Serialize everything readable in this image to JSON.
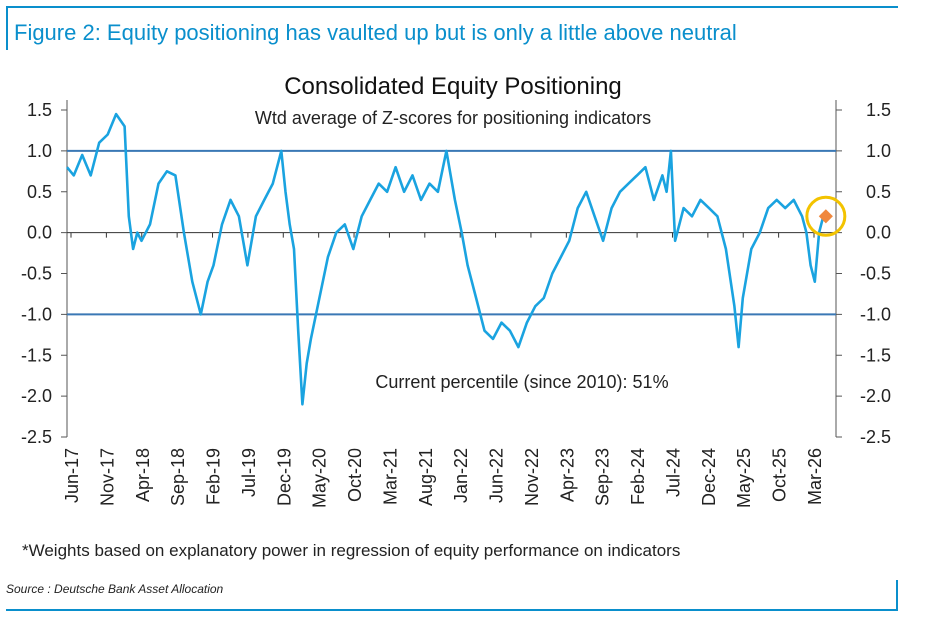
{
  "figure_title": "Figure 2: Equity positioning has vaulted up but is only a little above neutral",
  "footnote": "*Weights based on explanatory power in regression of equity performance on indicators",
  "source": "Source : Deutsche Bank Asset Allocation",
  "colors": {
    "frame": "#0a8fcc",
    "series": "#1aa3e0",
    "reference_lines": "#3a78b5",
    "highlight_circle": "#f3c300",
    "current_marker": "#f0883e"
  },
  "chart_data": {
    "type": "line",
    "title": "Consolidated Equity Positioning",
    "subtitle": "Wtd average of Z-scores for positioning indicators",
    "annotation": "Current percentile (since 2010): 51%",
    "xlabel": "",
    "ylabel": "",
    "ylim": [
      -2.5,
      1.5
    ],
    "xlim": [
      2017.42,
      2026.5
    ],
    "yticks": [
      "1.5",
      "1.0",
      "0.5",
      "0.0",
      "-0.5",
      "-1.0",
      "-1.5",
      "-2.0",
      "-2.5"
    ],
    "xtick_labels": [
      "Jun-17",
      "Nov-17",
      "Apr-18",
      "Sep-18",
      "Feb-19",
      "Jul-19",
      "Dec-19",
      "May-20",
      "Oct-20",
      "Mar-21",
      "Aug-21",
      "Jan-22",
      "Jun-22",
      "Nov-22",
      "Apr-23",
      "Sep-23",
      "Feb-24",
      "Jul-24",
      "Dec-24",
      "May-25",
      "Oct-25",
      "Mar-26"
    ],
    "reference_lines": [
      1.0,
      -1.0
    ],
    "current_point": {
      "x": 2026.38,
      "y": 0.2
    },
    "series": [
      {
        "name": "Consolidated Equity Positioning",
        "x": [
          2017.42,
          2017.5,
          2017.6,
          2017.7,
          2017.8,
          2017.9,
          2018.0,
          2018.1,
          2018.15,
          2018.2,
          2018.25,
          2018.3,
          2018.4,
          2018.5,
          2018.6,
          2018.7,
          2018.8,
          2018.9,
          2019.0,
          2019.08,
          2019.15,
          2019.25,
          2019.35,
          2019.45,
          2019.55,
          2019.65,
          2019.75,
          2019.85,
          2019.95,
          2020.0,
          2020.05,
          2020.1,
          2020.15,
          2020.2,
          2020.25,
          2020.3,
          2020.4,
          2020.5,
          2020.6,
          2020.7,
          2020.8,
          2020.9,
          2021.0,
          2021.1,
          2021.2,
          2021.3,
          2021.4,
          2021.5,
          2021.6,
          2021.7,
          2021.8,
          2021.9,
          2022.0,
          2022.08,
          2022.15,
          2022.25,
          2022.35,
          2022.45,
          2022.55,
          2022.65,
          2022.75,
          2022.85,
          2022.95,
          2023.05,
          2023.15,
          2023.25,
          2023.35,
          2023.45,
          2023.55,
          2023.65,
          2023.75,
          2023.85,
          2023.95,
          2024.05,
          2024.15,
          2024.25,
          2024.35,
          2024.45,
          2024.5,
          2024.55,
          2024.6,
          2024.7,
          2024.8,
          2024.9,
          2025.0,
          2025.1,
          2025.2,
          2025.3,
          2025.35,
          2025.4,
          2025.5,
          2025.6,
          2025.7,
          2025.8,
          2025.9,
          2026.0,
          2026.05,
          2026.1,
          2026.15,
          2026.2,
          2026.25,
          2026.3,
          2026.35
        ],
        "y": [
          0.8,
          0.7,
          0.95,
          0.7,
          1.1,
          1.2,
          1.45,
          1.3,
          0.2,
          -0.2,
          0.0,
          -0.1,
          0.1,
          0.6,
          0.75,
          0.7,
          0.0,
          -0.6,
          -1.0,
          -0.6,
          -0.4,
          0.1,
          0.4,
          0.2,
          -0.4,
          0.2,
          0.4,
          0.6,
          1.0,
          0.5,
          0.1,
          -0.2,
          -1.2,
          -2.1,
          -1.6,
          -1.3,
          -0.8,
          -0.3,
          0.0,
          0.1,
          -0.2,
          0.2,
          0.4,
          0.6,
          0.5,
          0.8,
          0.5,
          0.7,
          0.4,
          0.6,
          0.5,
          1.0,
          0.4,
          0.0,
          -0.4,
          -0.8,
          -1.2,
          -1.3,
          -1.1,
          -1.2,
          -1.4,
          -1.1,
          -0.9,
          -0.8,
          -0.5,
          -0.3,
          -0.1,
          0.3,
          0.5,
          0.2,
          -0.1,
          0.3,
          0.5,
          0.6,
          0.7,
          0.8,
          0.4,
          0.7,
          0.5,
          1.0,
          -0.1,
          0.3,
          0.2,
          0.4,
          0.3,
          0.2,
          -0.2,
          -0.9,
          -1.4,
          -0.8,
          -0.2,
          0.0,
          0.3,
          0.4,
          0.3,
          0.4,
          0.3,
          0.2,
          0.0,
          -0.4,
          -0.6,
          0.0,
          0.2
        ]
      }
    ]
  }
}
